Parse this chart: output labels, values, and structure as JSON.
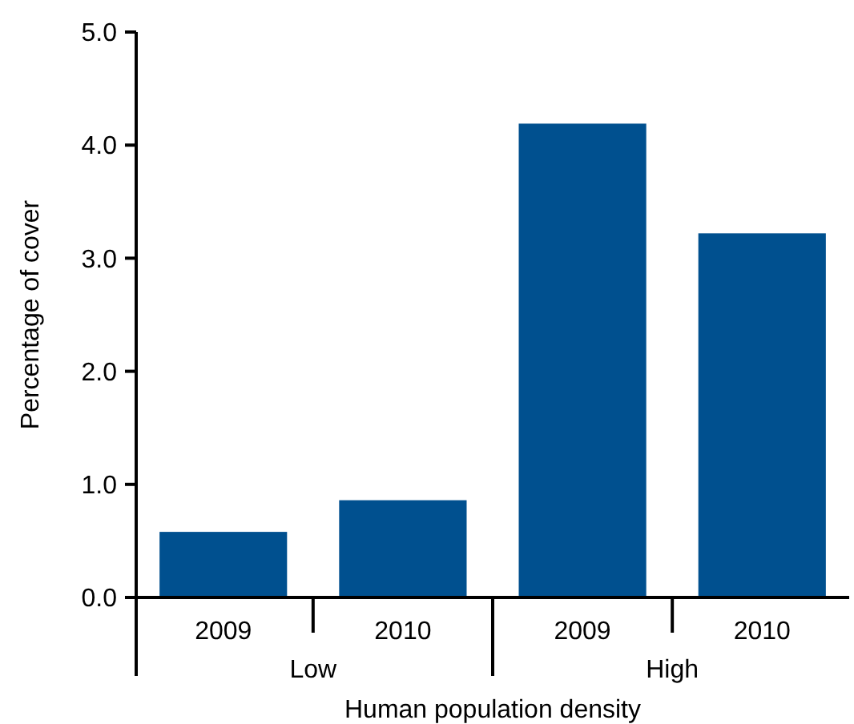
{
  "chart_data": {
    "type": "bar",
    "xlabel": "Human population density",
    "ylabel": "Percentage of cover",
    "categories": [
      "2009",
      "2010",
      "2009",
      "2010"
    ],
    "values": [
      0.58,
      0.86,
      4.19,
      3.22
    ],
    "color": "#00508f",
    "ylim": [
      0,
      5
    ],
    "yticks": [
      {
        "value": 0,
        "label": "0.0"
      },
      {
        "value": 1,
        "label": "1.0"
      },
      {
        "value": 2,
        "label": "2.0"
      },
      {
        "value": 3,
        "label": "3.0"
      },
      {
        "value": 4,
        "label": "4.0"
      },
      {
        "value": 5,
        "label": "5.0"
      }
    ],
    "annotations": [
      "Low",
      "High"
    ],
    "grid": false
  }
}
